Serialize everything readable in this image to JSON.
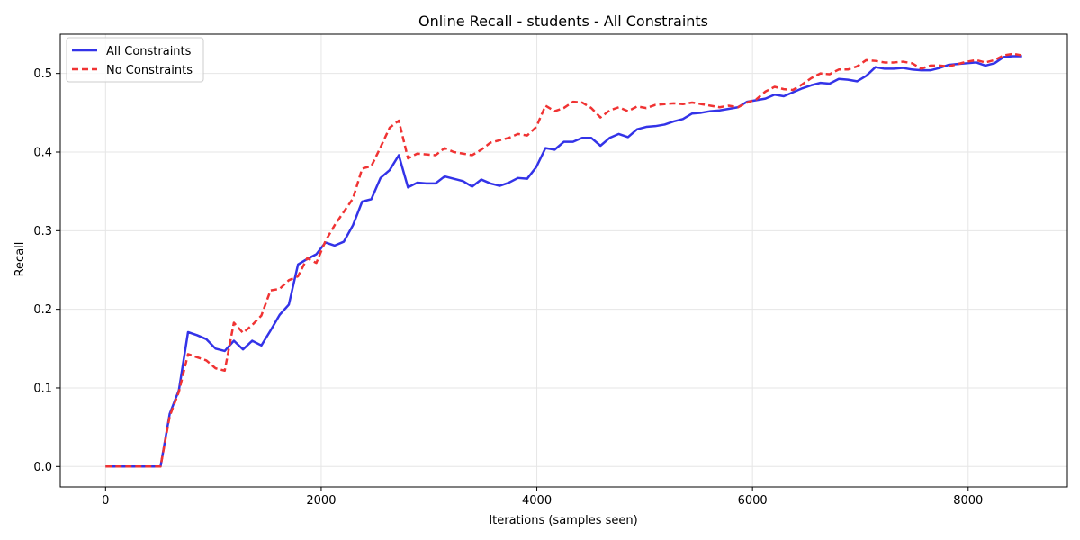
{
  "chart_data": {
    "type": "line",
    "title": "Online Recall - students - All Constraints",
    "xlabel": "Iterations (samples seen)",
    "ylabel": "Recall",
    "xlim": [
      -420,
      8920
    ],
    "ylim": [
      -0.026,
      0.55
    ],
    "xticks": [
      0,
      2000,
      4000,
      6000,
      8000
    ],
    "yticks": [
      0.0,
      0.1,
      0.2,
      0.3,
      0.4,
      0.5
    ],
    "xtick_labels": [
      "0",
      "2000",
      "4000",
      "6000",
      "8000"
    ],
    "ytick_labels": [
      "0.0",
      "0.1",
      "0.2",
      "0.3",
      "0.4",
      "0.5"
    ],
    "grid": true,
    "legend_position": "upper-left",
    "series": [
      {
        "name": "All Constraints",
        "color": "#0000dd",
        "style": "solid",
        "x": [
          0,
          85,
          170,
          255,
          340,
          425,
          510,
          595,
          680,
          765,
          850,
          935,
          1020,
          1105,
          1190,
          1275,
          1360,
          1445,
          1530,
          1615,
          1700,
          1785,
          1870,
          1955,
          2040,
          2125,
          2210,
          2295,
          2380,
          2465,
          2550,
          2635,
          2720,
          2805,
          2890,
          2975,
          3060,
          3145,
          3230,
          3315,
          3400,
          3485,
          3570,
          3655,
          3740,
          3825,
          3910,
          3995,
          4080,
          4165,
          4250,
          4335,
          4420,
          4505,
          4590,
          4675,
          4760,
          4845,
          4930,
          5015,
          5100,
          5185,
          5270,
          5355,
          5440,
          5525,
          5610,
          5695,
          5780,
          5865,
          5950,
          6035,
          6120,
          6205,
          6290,
          6375,
          6460,
          6545,
          6630,
          6715,
          6800,
          6885,
          6970,
          7055,
          7140,
          7225,
          7310,
          7395,
          7480,
          7565,
          7650,
          7735,
          7820,
          7905,
          7990,
          8075,
          8160,
          8245,
          8330,
          8415,
          8500
        ],
        "y": [
          0.0,
          0.0,
          0.0,
          0.0,
          0.0,
          0.0,
          0.0,
          0.067,
          0.097,
          0.171,
          0.167,
          0.162,
          0.15,
          0.147,
          0.16,
          0.149,
          0.16,
          0.154,
          0.173,
          0.193,
          0.206,
          0.257,
          0.264,
          0.27,
          0.285,
          0.281,
          0.286,
          0.307,
          0.337,
          0.34,
          0.367,
          0.377,
          0.396,
          0.355,
          0.361,
          0.36,
          0.36,
          0.369,
          0.366,
          0.363,
          0.356,
          0.365,
          0.36,
          0.357,
          0.361,
          0.367,
          0.366,
          0.381,
          0.405,
          0.403,
          0.413,
          0.413,
          0.418,
          0.418,
          0.408,
          0.418,
          0.423,
          0.419,
          0.429,
          0.432,
          0.433,
          0.435,
          0.439,
          0.442,
          0.449,
          0.45,
          0.452,
          0.453,
          0.455,
          0.457,
          0.464,
          0.466,
          0.468,
          0.473,
          0.471,
          0.476,
          0.481,
          0.485,
          0.488,
          0.487,
          0.493,
          0.492,
          0.49,
          0.497,
          0.508,
          0.506,
          0.506,
          0.507,
          0.505,
          0.504,
          0.504,
          0.507,
          0.511,
          0.512,
          0.513,
          0.514,
          0.51,
          0.513,
          0.521,
          0.522,
          0.522
        ]
      },
      {
        "name": "No Constraints",
        "color": "#ee0000",
        "style": "dashed",
        "x": [
          0,
          85,
          170,
          255,
          340,
          425,
          510,
          595,
          680,
          765,
          850,
          935,
          1020,
          1105,
          1190,
          1275,
          1360,
          1445,
          1530,
          1615,
          1700,
          1785,
          1870,
          1955,
          2040,
          2125,
          2210,
          2295,
          2380,
          2465,
          2550,
          2635,
          2720,
          2805,
          2890,
          2975,
          3060,
          3145,
          3230,
          3315,
          3400,
          3485,
          3570,
          3655,
          3740,
          3825,
          3910,
          3995,
          4080,
          4165,
          4250,
          4335,
          4420,
          4505,
          4590,
          4675,
          4760,
          4845,
          4930,
          5015,
          5100,
          5185,
          5270,
          5355,
          5440,
          5525,
          5610,
          5695,
          5780,
          5865,
          5950,
          6035,
          6120,
          6205,
          6290,
          6375,
          6460,
          6545,
          6630,
          6715,
          6800,
          6885,
          6970,
          7055,
          7140,
          7225,
          7310,
          7395,
          7480,
          7565,
          7650,
          7735,
          7820,
          7905,
          7990,
          8075,
          8160,
          8245,
          8330,
          8415,
          8500
        ],
        "y": [
          0.0,
          0.0,
          0.0,
          0.0,
          0.0,
          0.0,
          0.0,
          0.064,
          0.095,
          0.143,
          0.139,
          0.135,
          0.125,
          0.122,
          0.183,
          0.17,
          0.18,
          0.192,
          0.224,
          0.226,
          0.237,
          0.242,
          0.265,
          0.259,
          0.287,
          0.307,
          0.324,
          0.341,
          0.379,
          0.382,
          0.406,
          0.431,
          0.44,
          0.392,
          0.398,
          0.397,
          0.396,
          0.405,
          0.4,
          0.398,
          0.396,
          0.403,
          0.412,
          0.415,
          0.418,
          0.423,
          0.421,
          0.432,
          0.459,
          0.452,
          0.456,
          0.464,
          0.463,
          0.456,
          0.444,
          0.453,
          0.457,
          0.452,
          0.458,
          0.456,
          0.46,
          0.461,
          0.462,
          0.461,
          0.463,
          0.461,
          0.459,
          0.457,
          0.459,
          0.457,
          0.463,
          0.467,
          0.477,
          0.483,
          0.48,
          0.479,
          0.486,
          0.494,
          0.5,
          0.499,
          0.505,
          0.505,
          0.509,
          0.517,
          0.516,
          0.514,
          0.514,
          0.515,
          0.513,
          0.506,
          0.51,
          0.51,
          0.509,
          0.512,
          0.515,
          0.517,
          0.514,
          0.517,
          0.523,
          0.525,
          0.523
        ]
      }
    ]
  }
}
